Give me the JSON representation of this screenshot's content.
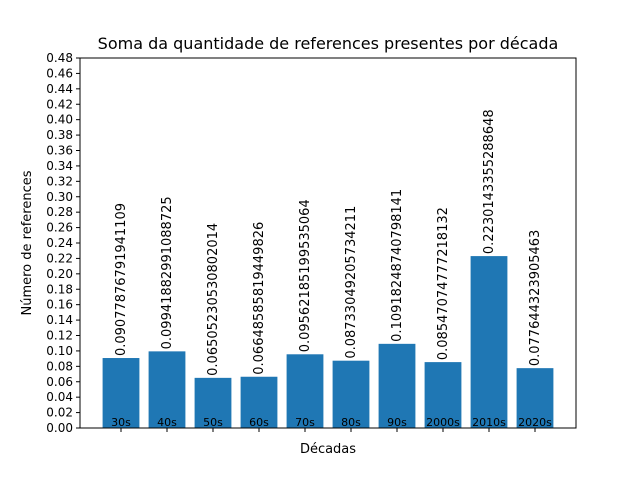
{
  "chart_data": {
    "type": "bar",
    "title": "Soma da quantidade de references presentes por década",
    "xlabel": "Décadas",
    "ylabel": "Número de references",
    "categories": [
      "30s",
      "40s",
      "50s",
      "60s",
      "70s",
      "80s",
      "90s",
      "2000s",
      "2010s",
      "2020s"
    ],
    "values": [
      0.09077876791941109,
      0.09941882991088725,
      0.06505230530802014,
      0.06648585819449826,
      0.09562185199535064,
      0.08733049205734211,
      0.10918248740798141,
      0.08547074777218132,
      0.2230143355288648,
      0.077644323905463
    ],
    "value_labels": [
      "0.09077876791941109",
      "0.09941882991088725",
      "0.06505230530802014",
      "0.06648585819449826",
      "0.09562185199535064",
      "0.08733049205734211",
      "0.10918248740798141",
      "0.08547074777218132",
      "0.2230143355288648",
      "0.077644323905463"
    ],
    "ylim": [
      0,
      0.48
    ],
    "yticks": [
      "0.00",
      "0.02",
      "0.04",
      "0.06",
      "0.08",
      "0.10",
      "0.12",
      "0.14",
      "0.16",
      "0.18",
      "0.20",
      "0.22",
      "0.24",
      "0.26",
      "0.28",
      "0.30",
      "0.32",
      "0.34",
      "0.36",
      "0.38",
      "0.40",
      "0.42",
      "0.44",
      "0.46",
      "0.48"
    ],
    "bar_color": "#1f77b4",
    "grid": false,
    "legend": "none"
  }
}
